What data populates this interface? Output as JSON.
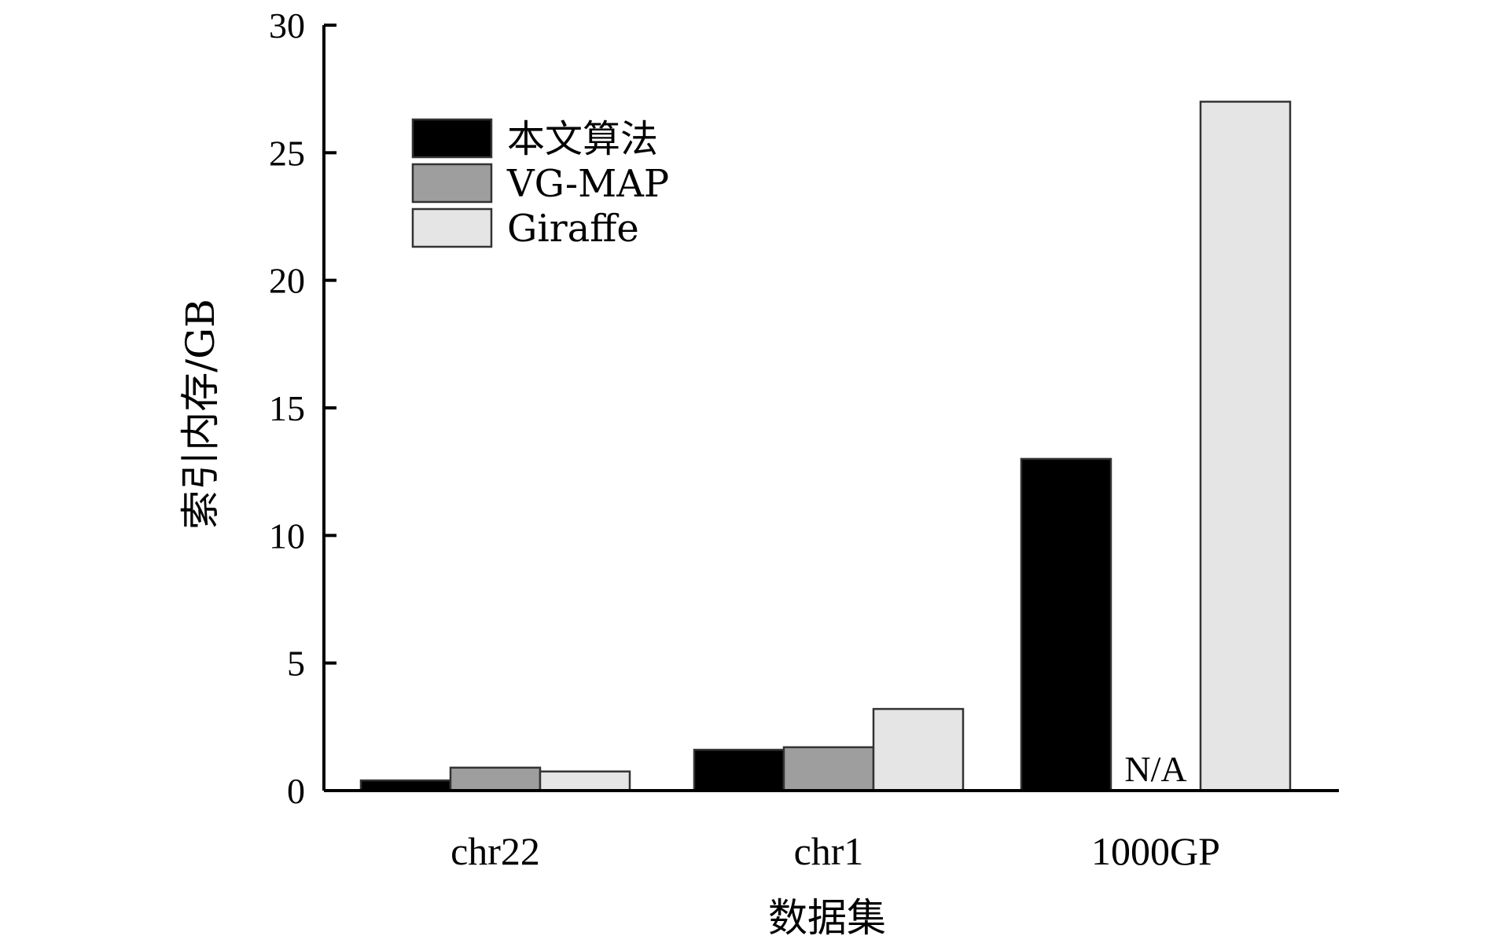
{
  "chart_data": {
    "type": "bar",
    "title": "",
    "xlabel": "数据集",
    "ylabel": "索引内存/GB",
    "ylim": [
      0,
      30
    ],
    "yticks": [
      0,
      5,
      10,
      15,
      20,
      25,
      30
    ],
    "grid": false,
    "legend_position": "top-left",
    "categories": [
      "chr22",
      "chr1",
      "1000GP"
    ],
    "series": [
      {
        "name": "本文算法",
        "color": "#000000",
        "values": [
          0.4,
          1.6,
          13.0
        ]
      },
      {
        "name": "VG-MAP",
        "color": "#9e9e9e",
        "values": [
          0.9,
          1.7,
          null
        ]
      },
      {
        "name": "Giraffe",
        "color": "#e5e5e5",
        "values": [
          0.75,
          3.2,
          27.0
        ]
      }
    ],
    "annotations": [
      {
        "text": "N/A",
        "category": "1000GP",
        "series": "VG-MAP"
      }
    ]
  }
}
